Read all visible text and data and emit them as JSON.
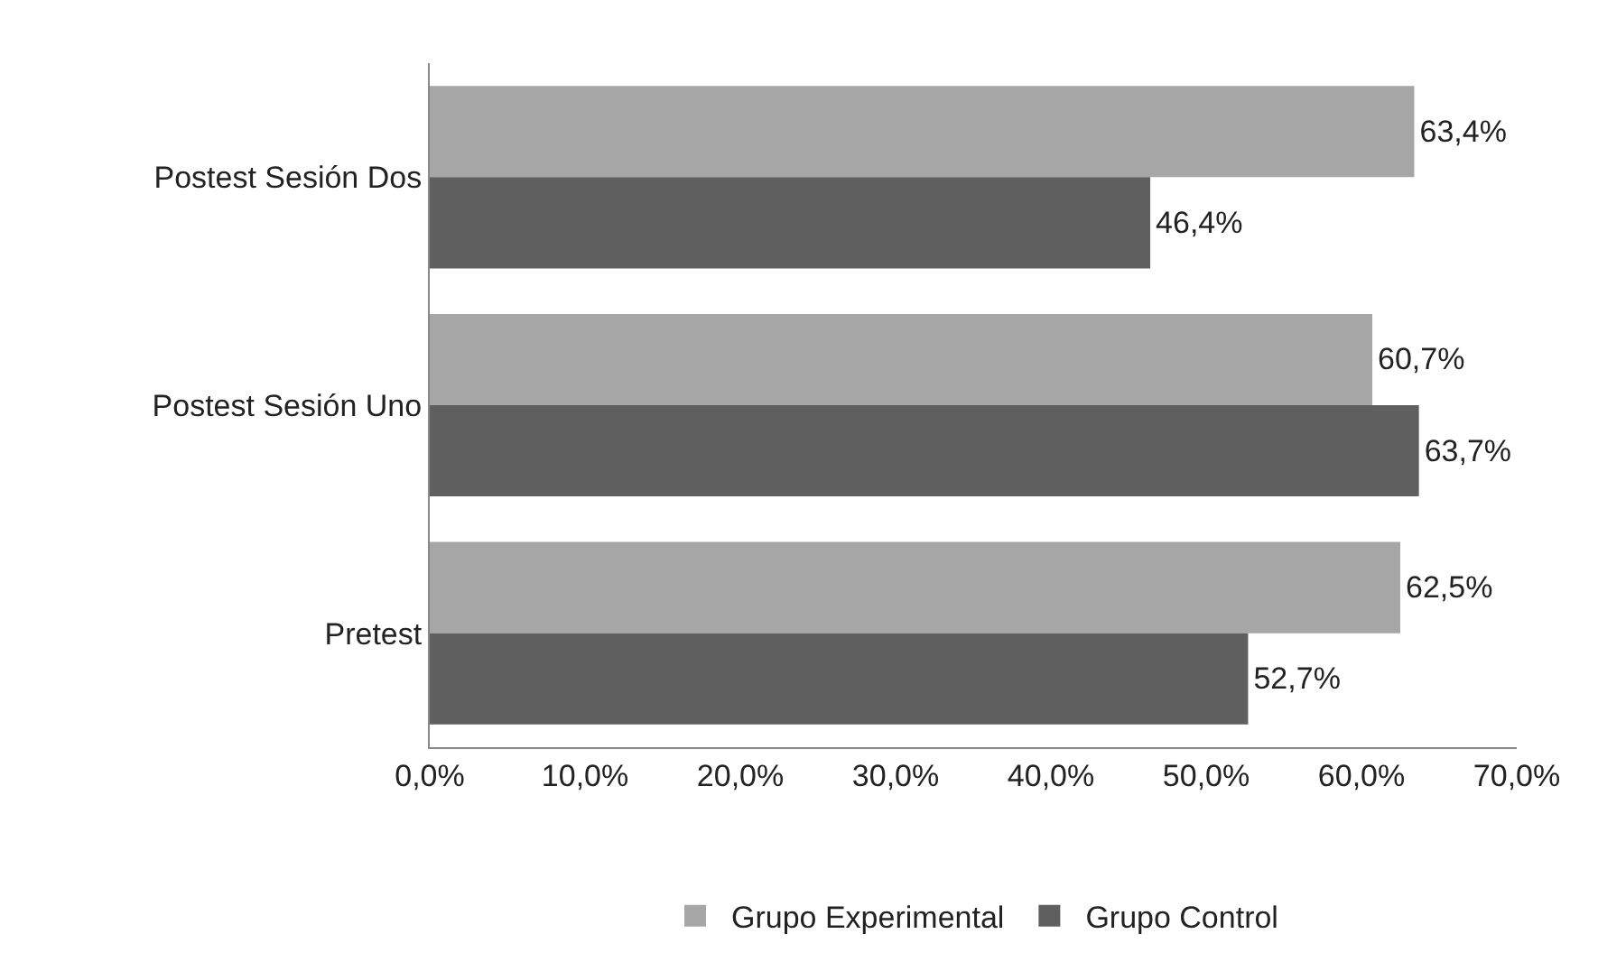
{
  "chart_data": {
    "type": "bar",
    "orientation": "horizontal",
    "categories": [
      "Postest Sesión Dos",
      "Postest Sesión Uno",
      "Pretest"
    ],
    "series": [
      {
        "name": "Grupo Experimental",
        "color": "#a6a6a6",
        "values": [
          63.4,
          60.7,
          62.5
        ],
        "value_labels": [
          "63,4%",
          "60,7%",
          "62,5%"
        ]
      },
      {
        "name": "Grupo Control",
        "color": "#5f5f5f",
        "values": [
          46.4,
          63.7,
          52.7
        ],
        "value_labels": [
          "46,4%",
          "63,7%",
          "52,7%"
        ]
      }
    ],
    "xlim": [
      0,
      70
    ],
    "xticks": [
      {
        "value": 0,
        "label": "0,0%"
      },
      {
        "value": 10,
        "label": "10,0%"
      },
      {
        "value": 20,
        "label": "20,0%"
      },
      {
        "value": 30,
        "label": "30,0%"
      },
      {
        "value": 40,
        "label": "40,0%"
      },
      {
        "value": 50,
        "label": "50,0%"
      },
      {
        "value": 60,
        "label": "60,0%"
      },
      {
        "value": 70,
        "label": "70,0%"
      }
    ],
    "grid": false,
    "legend": "bottom"
  }
}
